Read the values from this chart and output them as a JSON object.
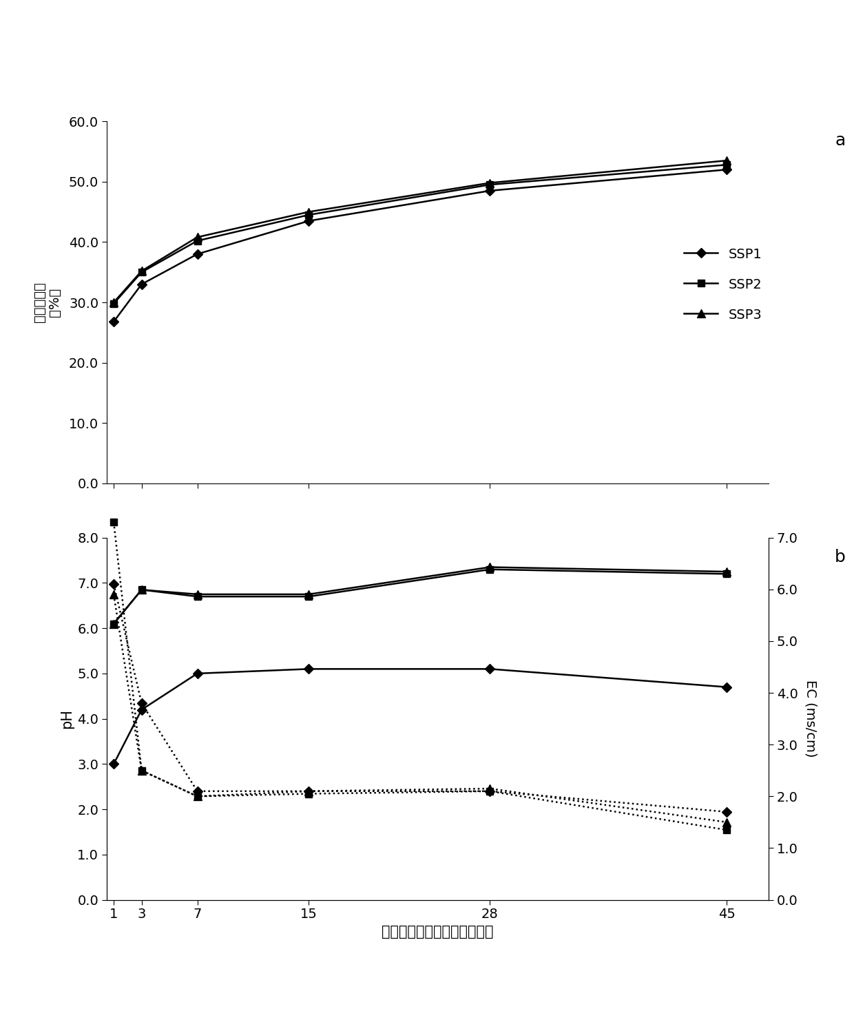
{
  "x": [
    1,
    3,
    7,
    15,
    28,
    45
  ],
  "panel_a": {
    "label": "a",
    "ylabel_line1": "累积溶解率",
    "ylabel_line2": "（%）",
    "ylim": [
      0.0,
      60.0
    ],
    "yticks": [
      0.0,
      10.0,
      20.0,
      30.0,
      40.0,
      50.0,
      60.0
    ],
    "SSP1": [
      26.8,
      33.0,
      38.0,
      43.5,
      48.5,
      52.0
    ],
    "SSP2": [
      29.8,
      35.0,
      40.2,
      44.5,
      49.5,
      52.8
    ],
    "SSP3": [
      30.0,
      35.2,
      40.8,
      45.0,
      49.8,
      53.5
    ]
  },
  "panel_b": {
    "label": "b",
    "ylabel": "pH",
    "ylabel_right": "EC (ms/cm)",
    "ylim_left": [
      0.0,
      8.0
    ],
    "ylim_right": [
      0.0,
      7.0
    ],
    "yticks_left": [
      0.0,
      1.0,
      2.0,
      3.0,
      4.0,
      5.0,
      6.0,
      7.0,
      8.0
    ],
    "yticks_right": [
      0.0,
      1.0,
      2.0,
      3.0,
      4.0,
      5.0,
      6.0,
      7.0
    ],
    "pH_SSP1": [
      3.0,
      4.2,
      5.0,
      5.1,
      5.1,
      4.7
    ],
    "pH_SSP2": [
      6.1,
      6.85,
      6.7,
      6.7,
      7.3,
      7.2
    ],
    "pH_SSP3": [
      6.1,
      6.85,
      6.75,
      6.75,
      7.35,
      7.25
    ],
    "EC_SSP1": [
      6.1,
      3.8,
      2.1,
      2.1,
      2.1,
      1.7
    ],
    "EC_SSP2": [
      7.3,
      2.5,
      2.0,
      2.05,
      2.1,
      1.35
    ],
    "EC_SSP3": [
      5.9,
      2.5,
      2.0,
      2.1,
      2.15,
      1.5
    ]
  },
  "xlabel": "肥料溶解于水中的时间（天）",
  "legend_labels": [
    "SSP1",
    "SSP2",
    "SSP3"
  ]
}
